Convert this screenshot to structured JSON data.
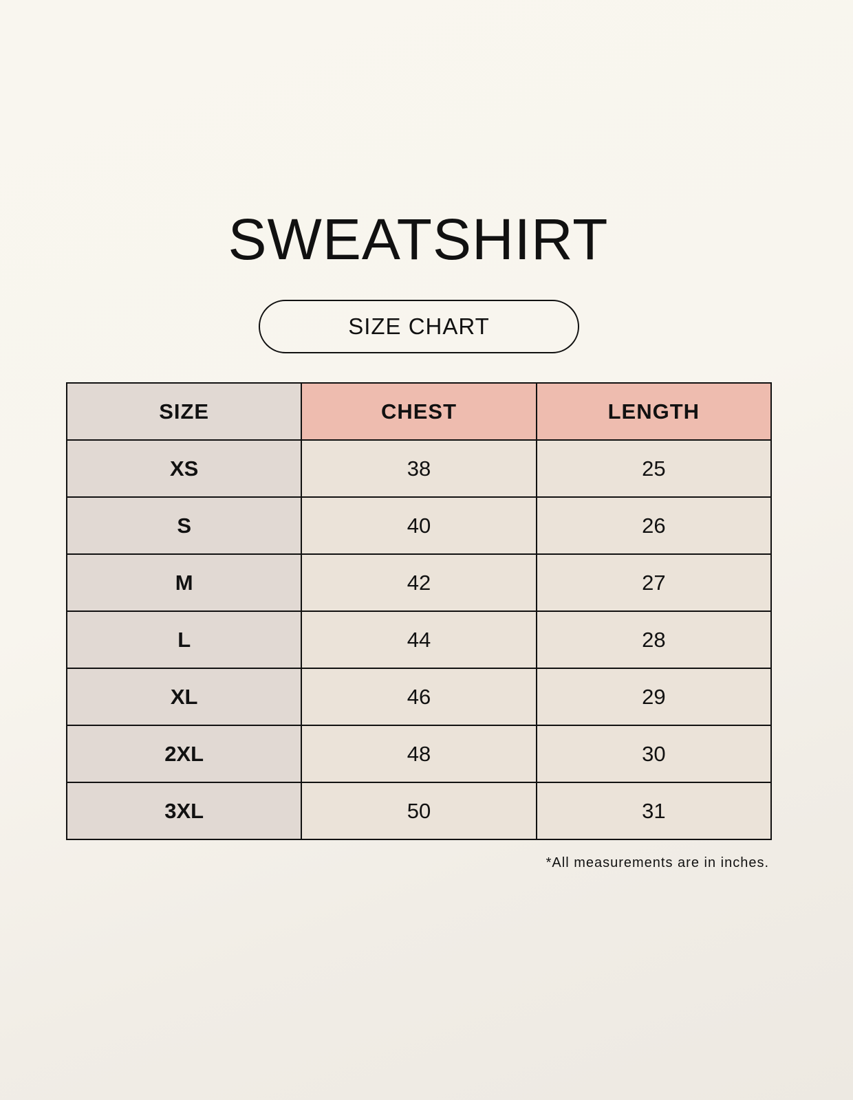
{
  "title": "SWEATSHIRT",
  "subtitle": "SIZE CHART",
  "table": {
    "headers": [
      "SIZE",
      "CHEST",
      "LENGTH"
    ],
    "rows": [
      [
        "XS",
        "38",
        "25"
      ],
      [
        "S",
        "40",
        "26"
      ],
      [
        "M",
        "42",
        "27"
      ],
      [
        "L",
        "44",
        "28"
      ],
      [
        "XL",
        "46",
        "29"
      ],
      [
        "2XL",
        "48",
        "30"
      ],
      [
        "3XL",
        "50",
        "31"
      ]
    ]
  },
  "note": "*All measurements are in inches.",
  "colors": {
    "size_column": "#e1d9d3",
    "header_accent": "#eebcaf",
    "value_cells": "#ebe3d9"
  }
}
